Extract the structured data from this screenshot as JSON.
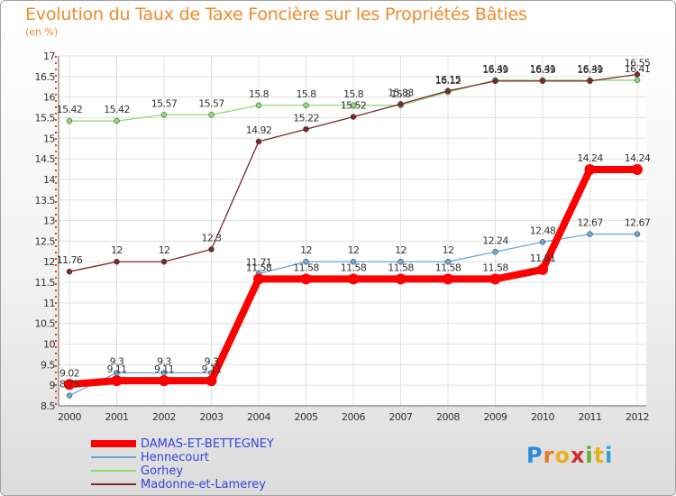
{
  "title": "Evolution du Taux de Taxe Foncière sur les Propriétés Bâties",
  "subtitle": "(en %)",
  "logo": "Proxiti",
  "chart_data": {
    "type": "line",
    "x": [
      "2000",
      "2001",
      "2002",
      "2003",
      "2004",
      "2005",
      "2006",
      "2007",
      "2008",
      "2009",
      "2010",
      "2011",
      "2012"
    ],
    "ylim": [
      8.5,
      17
    ],
    "yticks": [
      "8.5",
      "9",
      "9.5",
      "10",
      "10.5",
      "11",
      "11.5",
      "12",
      "12.5",
      "13",
      "13.5",
      "14",
      "14.5",
      "15",
      "15.5",
      "16",
      "16.5",
      "17"
    ],
    "grid": true,
    "legend_position": "bottom-left",
    "series": [
      {
        "name": "DAMAS-ET-BETTEGNEY",
        "color": "#ff0000",
        "values": [
          9.02,
          9.11,
          9.11,
          9.11,
          11.58,
          11.58,
          11.58,
          11.58,
          11.58,
          11.58,
          11.81,
          14.24,
          14.24
        ],
        "labels": [
          "9.02",
          "9.11",
          "9.11",
          "9.11",
          "11.58",
          "11.58",
          "11.58",
          "11.58",
          "11.58",
          "11.58",
          "11.81",
          "14.24",
          "14.24"
        ]
      },
      {
        "name": "Hennecourt",
        "color": "#6aa6d6",
        "values": [
          8.75,
          9.3,
          9.3,
          9.3,
          11.71,
          12,
          12,
          12,
          12,
          12.24,
          12.48,
          12.67,
          12.67
        ],
        "labels": [
          "8.75",
          "9.3",
          "9.3",
          "9.3",
          "11.71",
          "12",
          "12",
          "12",
          "12",
          "12.24",
          "12.48",
          "12.67",
          "12.67"
        ]
      },
      {
        "name": "Gorhey",
        "color": "#90d870",
        "values": [
          15.42,
          15.42,
          15.57,
          15.57,
          15.8,
          15.8,
          15.8,
          15.8,
          16.12,
          16.41,
          16.41,
          16.41,
          16.41
        ],
        "labels": [
          "15.42",
          "15.42",
          "15.57",
          "15.57",
          "15.8",
          "15.8",
          "15.8",
          "15.8",
          "16.12",
          "16.41",
          "16.41",
          "16.41",
          "16.41"
        ]
      },
      {
        "name": "Madonne-et-Lamerey",
        "color": "#7a2a2a",
        "values": [
          11.76,
          12,
          12,
          12.3,
          14.92,
          15.22,
          15.52,
          15.83,
          16.15,
          16.39,
          16.39,
          16.39,
          16.55
        ],
        "labels": [
          "11.76",
          "12",
          "12",
          "12.3",
          "14.92",
          "15.22",
          "15.52",
          "15.83",
          "16.15",
          "16.39",
          "16.39",
          "16.39",
          "16.55"
        ]
      }
    ]
  }
}
